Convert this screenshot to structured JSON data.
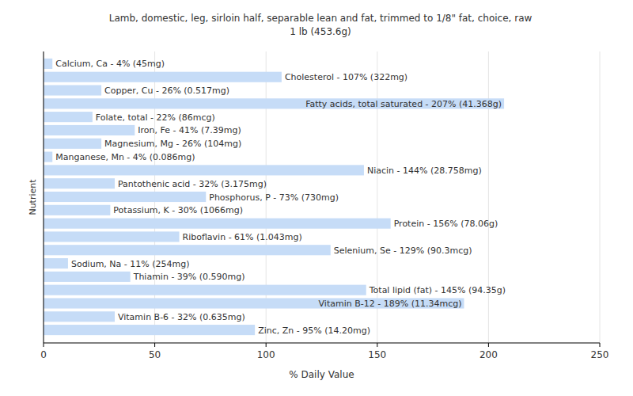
{
  "chart_data": {
    "type": "bar",
    "orientation": "horizontal",
    "title": "Lamb, domestic, leg, sirloin half, separable lean and fat, trimmed to 1/8\" fat, choice, raw",
    "subtitle": "1 lb (453.6g)",
    "x_label": "% Daily Value",
    "y_label": "Nutrient",
    "categories": [
      "Calcium, Ca - 4% (45mg)",
      "Cholesterol - 107% (322mg)",
      "Copper, Cu - 26% (0.517mg)",
      "Fatty acids, total saturated - 207% (41.368g)",
      "Folate, total - 22% (86mcg)",
      "Iron, Fe - 41% (7.39mg)",
      "Magnesium, Mg - 26% (104mg)",
      "Manganese, Mn - 4% (0.086mg)",
      "Niacin - 144% (28.758mg)",
      "Pantothenic acid - 32% (3.175mg)",
      "Phosphorus, P - 73% (730mg)",
      "Potassium, K - 30% (1066mg)",
      "Protein - 156% (78.06g)",
      "Riboflavin - 61% (1.043mg)",
      "Selenium, Se - 129% (90.3mcg)",
      "Sodium, Na - 11% (254mg)",
      "Thiamin - 39% (0.590mg)",
      "Total lipid (fat) - 145% (94.35g)",
      "Vitamin B-12 - 189% (11.34mcg)",
      "Vitamin B-6 - 32% (0.635mg)",
      "Zinc, Zn - 95% (14.20mg)"
    ],
    "values": [
      4,
      107,
      26,
      207,
      22,
      41,
      26,
      4,
      144,
      32,
      73,
      30,
      156,
      61,
      129,
      11,
      39,
      145,
      189,
      32,
      95
    ],
    "color": "#c6dcf7",
    "xlim": [
      0,
      250
    ],
    "xticks": [
      0,
      50,
      100,
      150,
      200,
      250
    ],
    "grid": true,
    "tick_labels": "x"
  }
}
